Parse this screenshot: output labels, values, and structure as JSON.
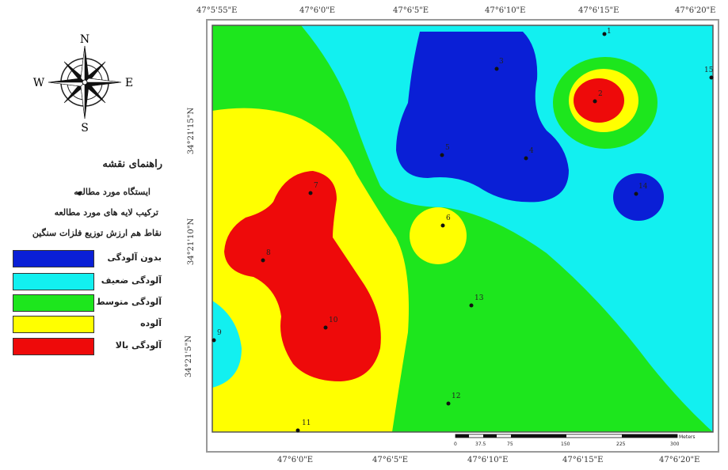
{
  "compass": {
    "n": "N",
    "s": "S",
    "e": "E",
    "w": "W"
  },
  "legend": {
    "title": "راهنمای نقشه",
    "station_label": "ایستگاه مورد مطالعه",
    "overlay_label": "ترکیب لایه های مورد مطالعه",
    "isoline_label": "نقاط هم ارزش توزیع فلزات سنگین",
    "classes": [
      {
        "label": "بدون آلودگی",
        "color": "#0a1fd6"
      },
      {
        "label": "آلودگی ضعیف",
        "color": "#12f0f0"
      },
      {
        "label": "آلودگی متوسط",
        "color": "#1de61d"
      },
      {
        "label": "آلوده",
        "color": "#ffff00"
      },
      {
        "label": "آلودگی بالا",
        "color": "#ee0a0a"
      }
    ]
  },
  "coords": {
    "top": [
      "47°5'55\"E",
      "47°6'0\"E",
      "47°6'5\"E",
      "47°6'10\"E",
      "47°6'15\"E",
      "47°6'20\"E"
    ],
    "bottom": [
      "47°6'0\"E",
      "47°6'5\"E",
      "47°6'10\"E",
      "47°6'15\"E",
      "47°6'20\"E"
    ],
    "left": [
      "34°21'15\"N",
      "34°21'10\"N",
      "34°21'5\"N"
    ]
  },
  "stations": [
    "1",
    "2",
    "3",
    "4",
    "5",
    "6",
    "7",
    "8",
    "9",
    "10",
    "11",
    "12",
    "13",
    "14",
    "15"
  ],
  "scale_bar": {
    "ticks": [
      "0",
      "37.5",
      "75",
      "150",
      "225",
      "300"
    ],
    "unit": "Meters"
  }
}
